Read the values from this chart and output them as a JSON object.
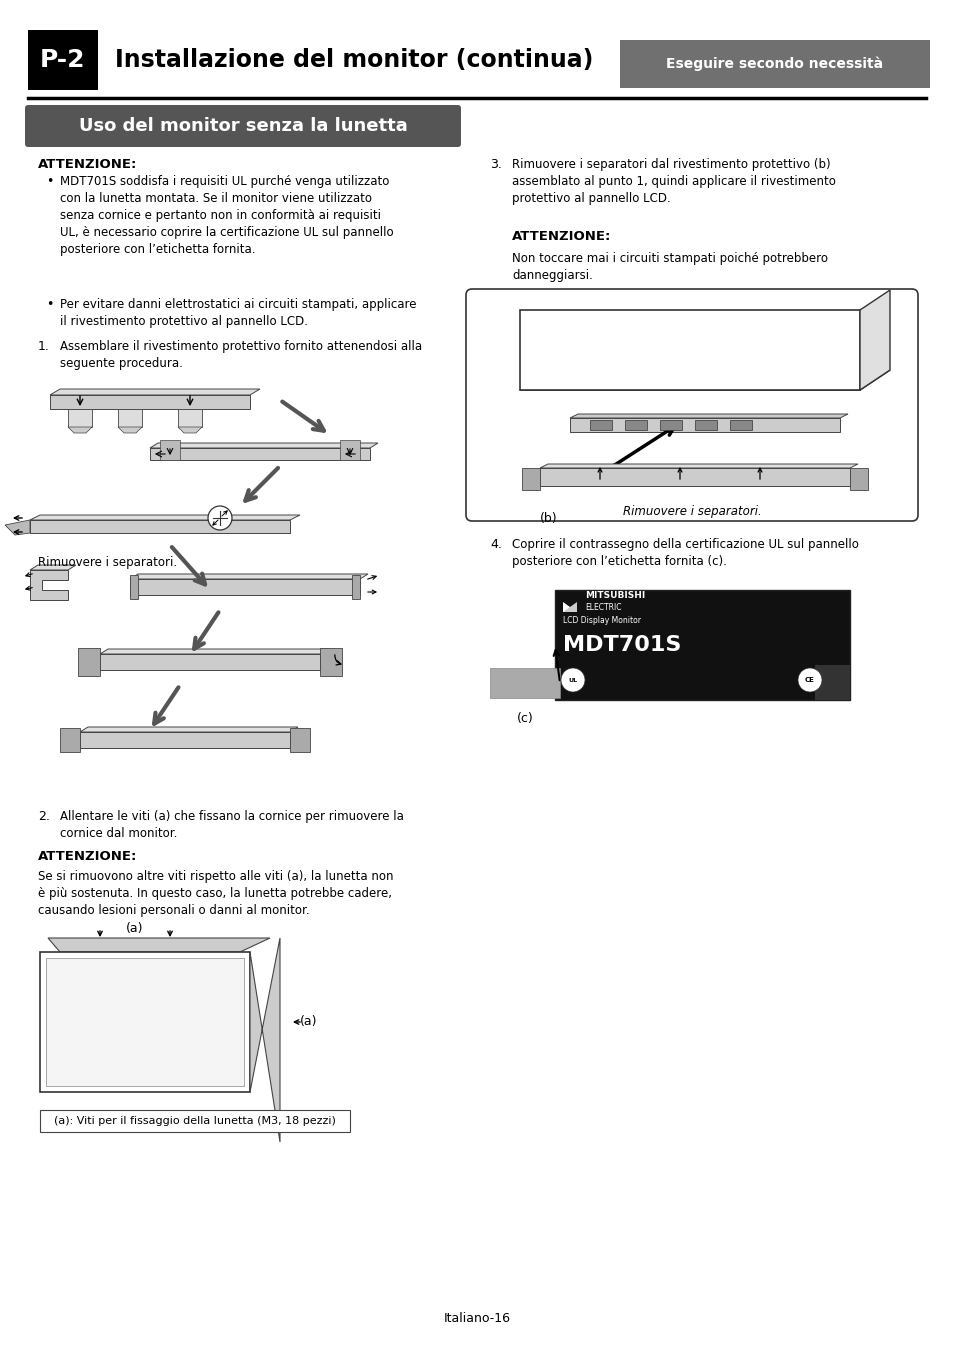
{
  "page_title": "Installazione del monitor (continua)",
  "page_label": "P-2",
  "page_tag": "Eseguire secondo necessità",
  "subtitle": "Uso del monitor senza la lunetta",
  "footer": "Italiano-16",
  "bg_color": "#ffffff",
  "tag_bg_color": "#707070",
  "subtitle_bg": "#555555",
  "content": {
    "att1_title": "ATTENZIONE:",
    "bullet1": "MDT701S soddisfa i requisiti UL purché venga utilizzato\ncon la lunetta montata. Se il monitor viene utilizzato\nsenza cornice e pertanto non in conformità ai requisiti\nUL, è necessario coprire la certificazione UL sul pannello\nposteriore con l’etichetta fornita.",
    "bullet2": "Per evitare danni elettrostatici ai circuiti stampati, applicare\nil rivestimento protettivo al pannello LCD.",
    "step1": "1.  Assemblare il rivestimento protettivo fornito attenendosi alla\n     seguente procedura.",
    "caption_left": "Rimuovere i separatori.",
    "step2_num": "2.",
    "step2": "Allentare le viti (a) che fissano la cornice per rimuovere la\ncornice dal monitor.",
    "att2_title": "ATTENZIONE:",
    "att2_text": "Se si rimuovono altre viti rispetto alle viti (a), la lunetta non\nè più sostenuta. In questo caso, la lunetta potrebbe cadere,\ncausando lesioni personali o danni al monitor.",
    "caption_bottom": "(a): Viti per il fissaggio della lunetta (M3, 18 pezzi)",
    "step3_num": "3.",
    "step3": "Rimuovere i separatori dal rivestimento protettivo (b)\nassemblato al punto 1, quindi applicare il rivestimento\nprotettivo al pannello LCD.",
    "att3_title": "ATTENZIONE:",
    "att3_text": "Non toccare mai i circuiti stampati piché potrebbero\ndanneggiarsi.",
    "caption_right": "Rimuovere i separatori.",
    "step4_num": "4.",
    "step4": "Coprire il contrassegno della certificazione UL sul pannello\nposteriore con l’etichetta fornita (c).",
    "c_label": "(c)"
  }
}
